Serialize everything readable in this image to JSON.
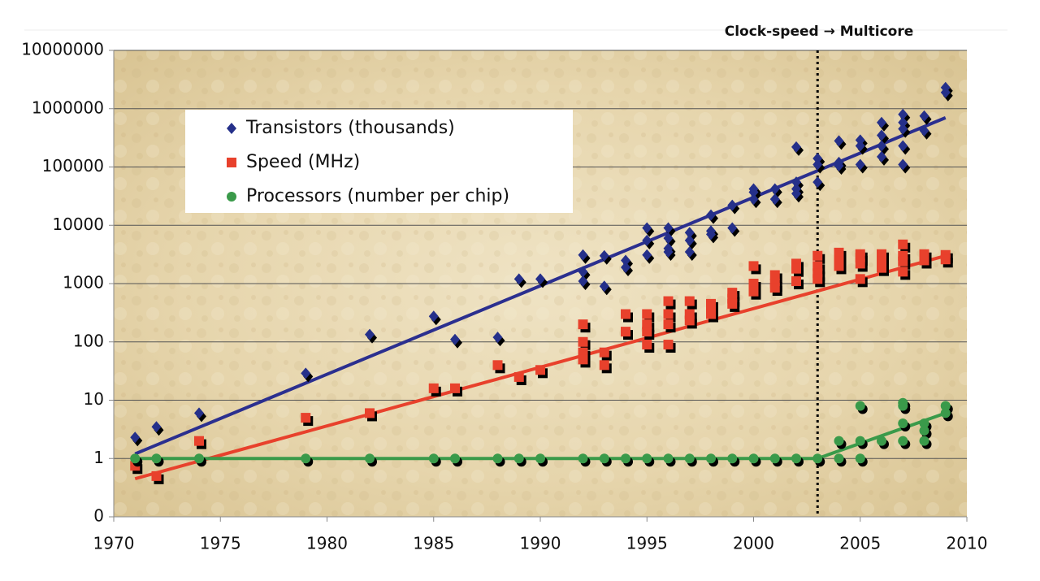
{
  "chart_data": {
    "type": "scatter",
    "annotation": {
      "text": "Clock-speed → Multicore",
      "x": 2003
    },
    "xlim": [
      1970,
      2010
    ],
    "xticks": [
      1970,
      1975,
      1980,
      1985,
      1990,
      1995,
      2000,
      2005,
      2010
    ],
    "ylim": [
      0.1,
      10000000
    ],
    "yticks": [
      {
        "value": 0.1,
        "label": "0"
      },
      1,
      10,
      100,
      1000,
      10000,
      100000,
      1000000,
      10000000
    ],
    "log_y": true,
    "grid": true,
    "legend": "upper left",
    "series": [
      {
        "name": "Transistors (thousands)",
        "color": "#25308a",
        "marker": "diamond",
        "x": [
          1971,
          1972,
          1974,
          1979,
          1982,
          1985,
          1986,
          1988,
          1989,
          1990,
          1992,
          1992,
          1992,
          1993,
          1993,
          1994,
          1994,
          1995,
          1995,
          1995,
          1996,
          1996,
          1996,
          1996,
          1997,
          1997,
          1997,
          1998,
          1998,
          1998,
          1999,
          1999,
          2000,
          2000,
          2000,
          2001,
          2001,
          2002,
          2002,
          2002,
          2002,
          2003,
          2003,
          2003,
          2004,
          2004,
          2004,
          2005,
          2005,
          2005,
          2006,
          2006,
          2006,
          2006,
          2007,
          2007,
          2007,
          2007,
          2007,
          2008,
          2008,
          2009,
          2009
        ],
        "values": [
          2.3,
          3.5,
          6,
          29,
          134,
          275,
          110,
          120,
          1200,
          1200,
          3100,
          1600,
          1100,
          3000,
          900,
          2500,
          1900,
          9000,
          5500,
          3100,
          9000,
          6000,
          4000,
          3500,
          7500,
          5500,
          3500,
          15000,
          8000,
          7000,
          22000,
          9000,
          42000,
          37000,
          28000,
          42000,
          28000,
          220000,
          55000,
          42000,
          35000,
          140000,
          110000,
          55000,
          280000,
          120000,
          105000,
          290000,
          230000,
          110000,
          580000,
          350000,
          230000,
          150000,
          800000,
          580000,
          450000,
          230000,
          110000,
          750000,
          420000,
          2300000,
          1900000
        ]
      },
      {
        "name": "Speed (MHz)",
        "color": "#e8412c",
        "marker": "square",
        "x": [
          1971,
          1972,
          1974,
          1979,
          1982,
          1985,
          1986,
          1988,
          1989,
          1990,
          1992,
          1992,
          1992,
          1992,
          1993,
          1993,
          1994,
          1994,
          1995,
          1995,
          1995,
          1995,
          1996,
          1996,
          1996,
          1996,
          1997,
          1997,
          1997,
          1998,
          1998,
          1998,
          1999,
          1999,
          1999,
          2000,
          2000,
          2000,
          2001,
          2001,
          2001,
          2002,
          2002,
          2002,
          2003,
          2003,
          2003,
          2003,
          2004,
          2004,
          2004,
          2004,
          2005,
          2005,
          2005,
          2005,
          2006,
          2006,
          2006,
          2006,
          2007,
          2007,
          2007,
          2007,
          2008,
          2008,
          2009,
          2009
        ],
        "values": [
          0.75,
          0.5,
          2,
          5,
          6,
          16,
          16,
          40,
          25,
          33,
          200,
          100,
          66,
          50,
          66,
          40,
          300,
          150,
          300,
          200,
          150,
          90,
          500,
          300,
          200,
          90,
          500,
          300,
          233,
          450,
          400,
          300,
          700,
          550,
          450,
          2000,
          1000,
          733,
          1400,
          1000,
          850,
          2200,
          1800,
          1100,
          3000,
          2000,
          1500,
          1200,
          3400,
          3000,
          2400,
          2000,
          3200,
          2800,
          2200,
          1200,
          3200,
          2930,
          2400,
          1860,
          4700,
          3000,
          2400,
          1600,
          3200,
          2500,
          3100,
          2600
        ]
      },
      {
        "name": "Processors (number per chip)",
        "color": "#3a9a4a",
        "marker": "circle",
        "x": [
          1971,
          1972,
          1974,
          1979,
          1982,
          1985,
          1986,
          1988,
          1989,
          1990,
          1992,
          1993,
          1994,
          1995,
          1996,
          1997,
          1998,
          1999,
          2000,
          2001,
          2002,
          2003,
          2004,
          2004,
          2005,
          2005,
          2005,
          2006,
          2007,
          2007,
          2007,
          2007,
          2008,
          2008,
          2008,
          2009,
          2009
        ],
        "values": [
          1,
          1,
          1,
          1,
          1,
          1,
          1,
          1,
          1,
          1,
          1,
          1,
          1,
          1,
          1,
          1,
          1,
          1,
          1,
          1,
          1,
          1,
          2,
          1,
          8,
          2,
          1,
          2,
          9,
          8,
          4,
          2,
          4,
          3,
          2,
          8,
          6
        ]
      }
    ],
    "trendlines": [
      {
        "color": "#2b2f8f",
        "x": [
          1971,
          2009
        ],
        "values": [
          1.2,
          700000
        ]
      },
      {
        "color": "#e8412c",
        "x": [
          1971,
          2009
        ],
        "values": [
          0.45,
          3000
        ]
      },
      {
        "color": "#3a9a4a",
        "x": [
          1971,
          2003,
          2009
        ],
        "values": [
          1,
          1,
          6
        ]
      }
    ]
  }
}
